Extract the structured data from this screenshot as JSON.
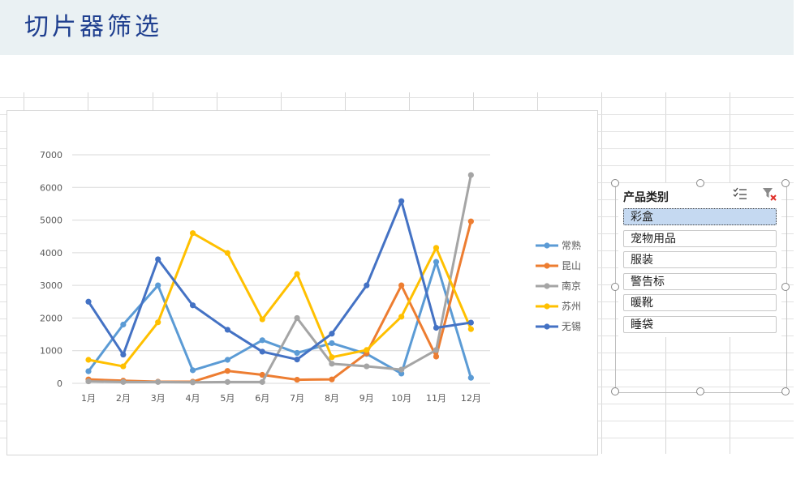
{
  "header": {
    "title": "切片器筛选"
  },
  "chart_data": {
    "type": "line",
    "categories": [
      "1月",
      "2月",
      "3月",
      "4月",
      "5月",
      "6月",
      "7月",
      "8月",
      "9月",
      "10月",
      "11月",
      "12月"
    ],
    "y_ticks": [
      "0",
      "1000",
      "2000",
      "3000",
      "4000",
      "5000",
      "6000",
      "7000"
    ],
    "ylim": [
      0,
      7000
    ],
    "grid": true,
    "legend_position": "right",
    "series": [
      {
        "name": "常熟",
        "color": "#5b9bd5",
        "values": [
          370,
          1800,
          3000,
          400,
          720,
          1320,
          930,
          1230,
          900,
          300,
          3720,
          170
        ]
      },
      {
        "name": "昆山",
        "color": "#ed7d31",
        "values": [
          120,
          80,
          50,
          50,
          380,
          260,
          110,
          120,
          920,
          3000,
          820,
          4960
        ]
      },
      {
        "name": "南京",
        "color": "#a5a5a5",
        "values": [
          60,
          40,
          40,
          30,
          40,
          40,
          2000,
          600,
          520,
          420,
          1020,
          6380
        ]
      },
      {
        "name": "苏州",
        "color": "#ffc000",
        "values": [
          720,
          520,
          1870,
          4600,
          3990,
          1960,
          3350,
          800,
          1020,
          2040,
          4150,
          1660
        ]
      },
      {
        "name": "无锡",
        "color": "#4472c4",
        "values": [
          2500,
          880,
          3800,
          2390,
          1640,
          970,
          730,
          1520,
          3000,
          5580,
          1700,
          1860
        ]
      }
    ]
  },
  "slicer": {
    "title": "产品类别",
    "items": [
      {
        "label": "彩盒",
        "selected": true
      },
      {
        "label": "宠物用品",
        "selected": false
      },
      {
        "label": "服装",
        "selected": false
      },
      {
        "label": "警告标",
        "selected": false
      },
      {
        "label": "暖靴",
        "selected": false
      },
      {
        "label": "睡袋",
        "selected": false
      }
    ],
    "icons": {
      "multi_select": "multi-select-icon",
      "clear_filter": "clear-filter-icon"
    }
  }
}
